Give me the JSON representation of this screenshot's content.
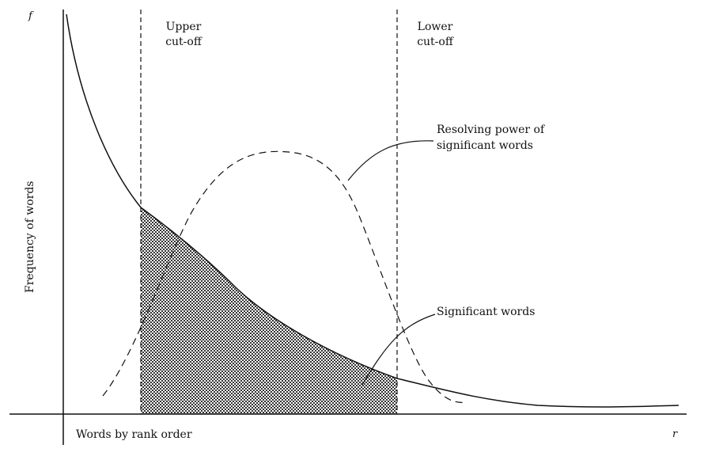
{
  "axes": {
    "x_label": "Words by rank order",
    "y_label": "Frequency of words",
    "y_axis_symbol": "f",
    "x_axis_symbol": "r"
  },
  "regions": {
    "upper_cutoff": [
      "Upper",
      "cut-off"
    ],
    "lower_cutoff": [
      "Lower",
      "cut-off"
    ]
  },
  "annotations": {
    "resolving_power": [
      "Resolving power of",
      "significant words"
    ],
    "significant_words": "Significant words"
  },
  "colors": {
    "ink": "#111111",
    "hatch": "#333333"
  }
}
